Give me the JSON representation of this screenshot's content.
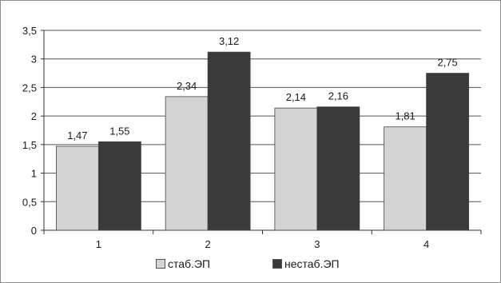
{
  "chart_data": {
    "type": "bar",
    "categories": [
      "1",
      "2",
      "3",
      "4"
    ],
    "series": [
      {
        "name": "стаб.ЭП",
        "values": [
          1.47,
          2.34,
          2.14,
          1.81
        ],
        "value_labels": [
          "1,47",
          "2,34",
          "2,14",
          "1,81"
        ],
        "color": "#d4d4d4"
      },
      {
        "name": "нестаб.ЭП",
        "values": [
          1.55,
          3.12,
          2.16,
          2.75
        ],
        "value_labels": [
          "1,55",
          "3,12",
          "2,16",
          "2,75"
        ],
        "color": "#3a3a3a"
      }
    ],
    "ylim": [
      0,
      3.5
    ],
    "yticks": [
      0,
      0.5,
      1,
      1.5,
      2,
      2.5,
      3,
      3.5
    ],
    "ytick_labels": [
      "0",
      "0,5",
      "1",
      "1,5",
      "2",
      "2,5",
      "3",
      "3,5"
    ],
    "grid": true,
    "legend_position": "bottom",
    "title": "",
    "xlabel": "",
    "ylabel": ""
  }
}
